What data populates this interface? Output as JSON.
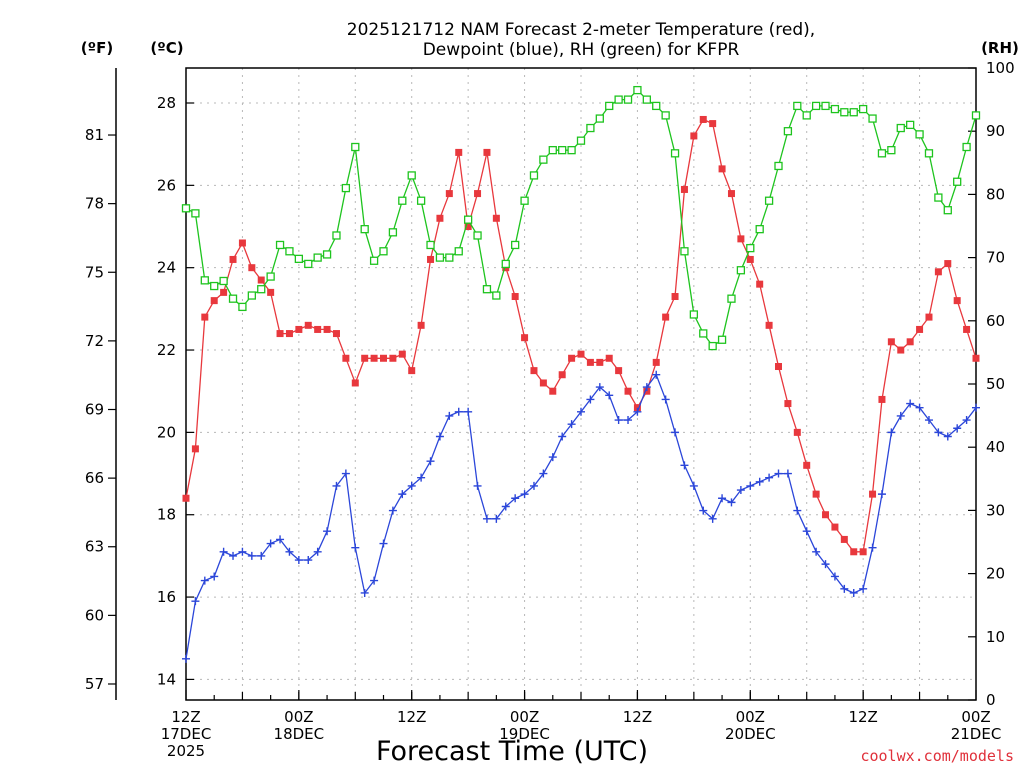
{
  "chart_data": {
    "type": "line",
    "title": "2025121712 NAM Forecast 2-meter Temperature (red),",
    "subtitle": "Dewpoint (blue), RH (green) for KFPR",
    "xlabel": "Forecast Time (UTC)",
    "credit": "coolwx.com/models",
    "units": {
      "fahrenheit": "(ºF)",
      "celsius": "(ºC)",
      "rh": "(RH)"
    },
    "x_hours_start": 0,
    "x_hours_end": 84,
    "x_step_hours": 1,
    "xlim_hours": [
      0,
      84
    ],
    "x_ticks": [
      {
        "hour": 0,
        "line1": "12Z",
        "line2": "17DEC",
        "line3": "2025"
      },
      {
        "hour": 12,
        "line1": "00Z",
        "line2": "18DEC",
        "line3": ""
      },
      {
        "hour": 24,
        "line1": "12Z",
        "line2": "",
        "line3": ""
      },
      {
        "hour": 36,
        "line1": "00Z",
        "line2": "19DEC",
        "line3": ""
      },
      {
        "hour": 48,
        "line1": "12Z",
        "line2": "",
        "line3": ""
      },
      {
        "hour": 60,
        "line1": "00Z",
        "line2": "20DEC",
        "line3": ""
      },
      {
        "hour": 72,
        "line1": "12Z",
        "line2": "",
        "line3": ""
      },
      {
        "hour": 84,
        "line1": "00Z",
        "line2": "21DEC",
        "line3": ""
      }
    ],
    "axes": {
      "celsius": {
        "ylim": [
          13.5,
          28.85
        ],
        "ticks": [
          14,
          16,
          18,
          20,
          22,
          24,
          26,
          28
        ]
      },
      "fahrenheit": {
        "ylim": [
          56.3,
          83.93
        ],
        "ticks": [
          57,
          60,
          63,
          66,
          69,
          72,
          75,
          78,
          81
        ]
      },
      "rh": {
        "ylim": [
          0,
          100
        ],
        "ticks": [
          0,
          10,
          20,
          30,
          40,
          50,
          60,
          70,
          80,
          90,
          100
        ]
      }
    },
    "grid": true,
    "series": [
      {
        "key": "temperature",
        "color": "#e8383d",
        "marker": "filled-square",
        "axis": "celsius",
        "values": [
          18.4,
          19.6,
          22.8,
          23.2,
          23.4,
          24.2,
          24.6,
          24.0,
          23.7,
          23.4,
          22.4,
          22.4,
          22.5,
          22.6,
          22.5,
          22.5,
          22.4,
          21.8,
          21.2,
          21.8,
          21.8,
          21.8,
          21.8,
          21.9,
          21.5,
          22.6,
          24.2,
          25.2,
          25.8,
          26.8,
          25.0,
          25.8,
          26.8,
          25.2,
          24.0,
          23.3,
          22.3,
          21.5,
          21.2,
          21.0,
          21.4,
          21.8,
          21.9,
          21.7,
          21.7,
          21.8,
          21.5,
          21.0,
          20.6,
          21.0,
          21.7,
          22.8,
          23.3,
          25.9,
          27.2,
          27.6,
          27.5,
          26.4,
          25.8,
          24.7,
          24.2,
          23.6,
          22.6,
          21.6,
          20.7,
          20.0,
          19.2,
          18.5,
          18.0,
          17.7,
          17.4,
          17.1,
          17.1,
          18.5,
          20.8,
          22.2,
          22.0,
          22.2,
          22.5,
          22.8,
          23.9,
          24.1,
          23.2,
          22.5,
          21.8
        ]
      },
      {
        "key": "dewpoint",
        "color": "#2b46d9",
        "marker": "plus",
        "axis": "celsius",
        "values": [
          14.5,
          15.9,
          16.4,
          16.5,
          17.1,
          17.0,
          17.1,
          17.0,
          17.0,
          17.3,
          17.4,
          17.1,
          16.9,
          16.9,
          17.1,
          17.6,
          18.7,
          19.0,
          17.2,
          16.1,
          16.4,
          17.3,
          18.1,
          18.5,
          18.7,
          18.9,
          19.3,
          19.9,
          20.4,
          20.5,
          20.5,
          18.7,
          17.9,
          17.9,
          18.2,
          18.4,
          18.5,
          18.7,
          19.0,
          19.4,
          19.9,
          20.2,
          20.5,
          20.8,
          21.1,
          20.9,
          20.3,
          20.3,
          20.5,
          21.1,
          21.4,
          20.8,
          20.0,
          19.2,
          18.7,
          18.1,
          17.9,
          18.4,
          18.3,
          18.6,
          18.7,
          18.8,
          18.9,
          19.0,
          19.0,
          18.1,
          17.6,
          17.1,
          16.8,
          16.5,
          16.2,
          16.1,
          16.2,
          17.2,
          18.5,
          20.0,
          20.4,
          20.7,
          20.6,
          20.3,
          20.0,
          19.9,
          20.1,
          20.3,
          20.6
        ]
      },
      {
        "key": "rh",
        "color": "#1ec41e",
        "marker": "open-square",
        "axis": "rh",
        "values": [
          77.8,
          77.0,
          66.4,
          65.5,
          66.3,
          63.5,
          62.2,
          64.0,
          65.0,
          67.0,
          72.0,
          71.0,
          69.8,
          69.0,
          70.0,
          70.5,
          73.5,
          81.0,
          87.5,
          74.5,
          69.5,
          71.0,
          74.0,
          79.0,
          83.0,
          79.0,
          72.0,
          70.0,
          70.0,
          71.0,
          76.0,
          73.5,
          65.0,
          64.0,
          69.0,
          72.0,
          79.0,
          83.0,
          85.5,
          87.0,
          87.0,
          87.0,
          88.5,
          90.5,
          92.0,
          94.0,
          95.0,
          95.0,
          96.5,
          95.0,
          94.0,
          92.5,
          86.5,
          71.0,
          61.0,
          58.0,
          56.0,
          57.0,
          63.5,
          68.0,
          71.5,
          74.5,
          79.0,
          84.5,
          90.0,
          94.0,
          92.5,
          94.0,
          94.0,
          93.5,
          93.0,
          93.0,
          93.5,
          92.0,
          86.5,
          87.0,
          90.5,
          91.0,
          89.5,
          86.5,
          79.5,
          77.5,
          82.0,
          87.5,
          92.5
        ]
      }
    ]
  }
}
